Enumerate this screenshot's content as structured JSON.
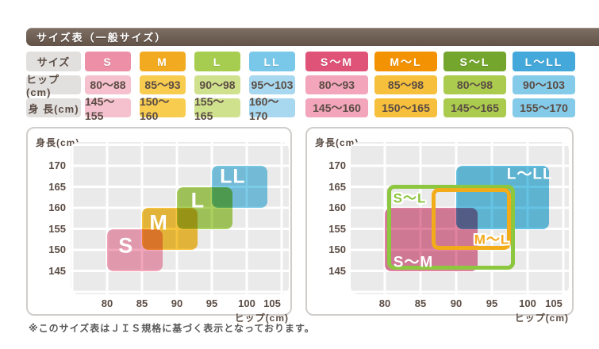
{
  "title": "サイズ表（一般サイズ）",
  "row_labels": {
    "size": "サイズ",
    "hip": "ヒップ(cm)",
    "height": "身 長(cm)"
  },
  "left_table": {
    "columns": [
      {
        "label": "S",
        "hip": "80～88",
        "height": "145～155",
        "header_bg": "#ec8fa7",
        "body_bg": "#f5c1cf"
      },
      {
        "label": "M",
        "hip": "85～93",
        "height": "150～160",
        "header_bg": "#f2ab21",
        "body_bg": "#f7cc4f"
      },
      {
        "label": "L",
        "hip": "90～98",
        "height": "155～165",
        "header_bg": "#a7cd50",
        "body_bg": "#cfe18d"
      },
      {
        "label": "LL",
        "hip": "95～103",
        "height": "160～170",
        "header_bg": "#79c7e9",
        "body_bg": "#a7d8ef"
      }
    ]
  },
  "right_table": {
    "columns": [
      {
        "label": "S～M",
        "hip": "80～93",
        "height": "145～160",
        "header_bg": "#e05378",
        "body_bg": "#f2a5bb"
      },
      {
        "label": "M～L",
        "hip": "85～98",
        "height": "150～165",
        "header_bg": "#f39303",
        "body_bg": "#f6c03c"
      },
      {
        "label": "S～L",
        "hip": "80～98",
        "height": "145～165",
        "header_bg": "#74a62e",
        "body_bg": "#aacb4e"
      },
      {
        "label": "L～LL",
        "hip": "90～103",
        "height": "155～170",
        "header_bg": "#45a8da",
        "body_bg": "#84cbe9"
      }
    ]
  },
  "chart_data": [
    {
      "type": "area",
      "name": "regular-sizes-chart",
      "xlabel": "ヒップ(cm)",
      "ylabel": "身長(cm)",
      "x_ticks": [
        80,
        85,
        90,
        95,
        100,
        105
      ],
      "y_ticks": [
        170,
        165,
        160,
        155,
        150,
        145
      ],
      "xlim": [
        75,
        106
      ],
      "ylim": [
        139,
        176
      ],
      "grid": true,
      "regions": [
        {
          "label": "S",
          "style": "fill",
          "hip": [
            80,
            88
          ],
          "height": [
            145,
            155
          ],
          "fill": "#f2a6bc",
          "label_color": "#ffffff",
          "label_at": [
            82.7,
            151
          ],
          "label_size": 27
        },
        {
          "label": "M",
          "style": "fill",
          "hip": [
            85,
            93
          ],
          "height": [
            150,
            160
          ],
          "fill": "#f6c33e",
          "label_color": "#ffffff",
          "label_at": [
            87.4,
            156.5
          ],
          "label_size": 27
        },
        {
          "label": "L",
          "style": "fill",
          "hip": [
            90,
            98
          ],
          "height": [
            155,
            165
          ],
          "fill": "#abd160",
          "label_color": "#ffffff",
          "label_at": [
            93,
            161.7
          ],
          "label_size": 27
        },
        {
          "label": "LL",
          "style": "fill",
          "hip": [
            95,
            103
          ],
          "height": [
            160,
            170
          ],
          "fill": "#7ccbe8",
          "label_color": "#ffffff",
          "label_at": [
            98,
            167.3
          ],
          "label_size": 25
        }
      ]
    },
    {
      "type": "area",
      "name": "combined-sizes-chart",
      "xlabel": "ヒップ(cm)",
      "ylabel": "身長(cm)",
      "x_ticks": [
        80,
        85,
        90,
        95,
        100,
        105
      ],
      "y_ticks": [
        170,
        165,
        160,
        155,
        150,
        145
      ],
      "xlim": [
        75,
        106
      ],
      "ylim": [
        139,
        176
      ],
      "grid": true,
      "regions": [
        {
          "label": "S～M",
          "style": "fill",
          "hip": [
            80,
            93
          ],
          "height": [
            145,
            160
          ],
          "fill": "#e083a1",
          "label_color": "#ffffff",
          "label_at": [
            84,
            147
          ],
          "label_size": 19
        },
        {
          "label": "L～LL",
          "style": "fill",
          "hip": [
            90,
            103
          ],
          "height": [
            155,
            170
          ],
          "fill": "#66c3e4",
          "label_color": "#ffffff",
          "label_at": [
            100.3,
            168
          ],
          "label_size": 19
        },
        {
          "label": "S～L",
          "style": "outline",
          "hip": [
            80,
            98
          ],
          "height": [
            145,
            165
          ],
          "stroke": "#8dc63f",
          "draw_hip": [
            80.6,
            98
          ],
          "draw_height": [
            145.7,
            165
          ],
          "label_color": "#8dc63f",
          "label_at": [
            83.5,
            162.3
          ],
          "label_size": 17,
          "halo": true
        },
        {
          "label": "M～L",
          "style": "outline",
          "hip": [
            85,
            98
          ],
          "height": [
            150,
            165
          ],
          "stroke": "#f2ac19",
          "draw_hip": [
            86.8,
            97.4
          ],
          "draw_height": [
            150.4,
            164.2
          ],
          "label_color": "#f5a91d",
          "label_at": [
            95,
            152.4
          ],
          "label_size": 17,
          "halo": true
        }
      ]
    }
  ],
  "footnote": "※このサイズ表はＪＩＳ規格に基づく表示となっております。"
}
